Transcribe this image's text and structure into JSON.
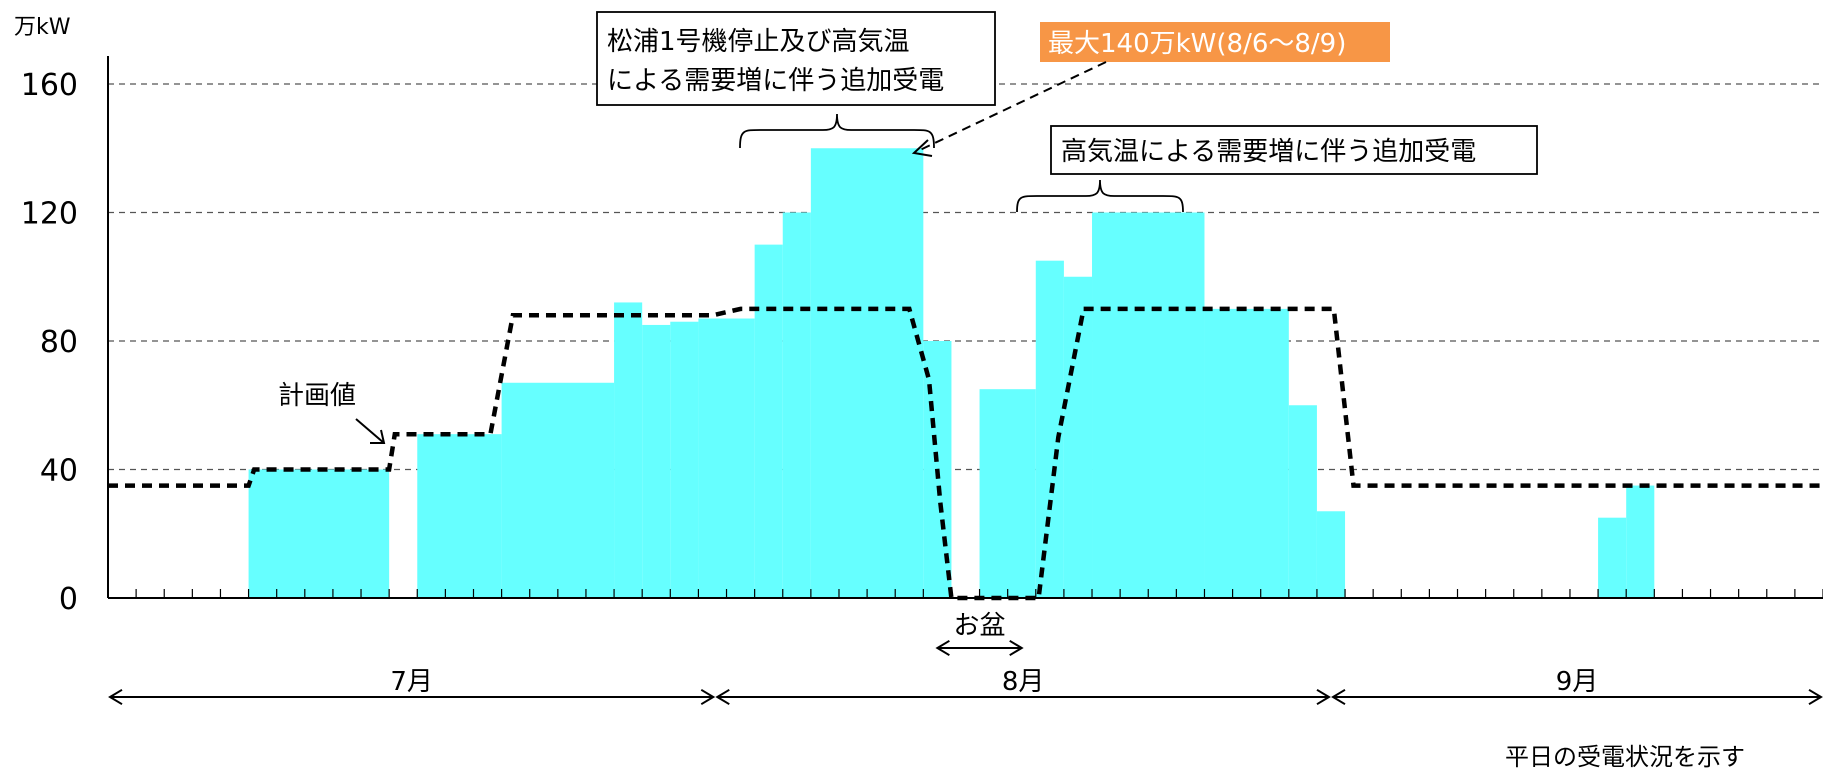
{
  "chart_data": {
    "type": "bar",
    "unit_label": "万kW",
    "ylim": [
      0,
      160
    ],
    "yticks": [
      "0",
      "40",
      "80",
      "120",
      "160"
    ],
    "grid": true,
    "day_count": 61,
    "bar_color": "#66ffff",
    "bars": [
      {
        "start": 5,
        "end": 10,
        "value": 40
      },
      {
        "start": 11,
        "end": 14,
        "value": 51
      },
      {
        "start": 14,
        "end": 18,
        "value": 67
      },
      {
        "start": 18,
        "end": 19,
        "value": 92
      },
      {
        "start": 19,
        "end": 20,
        "value": 85
      },
      {
        "start": 20,
        "end": 21,
        "value": 86
      },
      {
        "start": 21,
        "end": 23,
        "value": 87
      },
      {
        "start": 23,
        "end": 24,
        "value": 110
      },
      {
        "start": 24,
        "end": 25,
        "value": 120
      },
      {
        "start": 25,
        "end": 29,
        "value": 140
      },
      {
        "start": 29,
        "end": 30,
        "value": 80
      },
      {
        "start": 31,
        "end": 33,
        "value": 65
      },
      {
        "start": 33,
        "end": 34,
        "value": 105
      },
      {
        "start": 34,
        "end": 35,
        "value": 100
      },
      {
        "start": 35,
        "end": 39,
        "value": 120
      },
      {
        "start": 39,
        "end": 42,
        "value": 90
      },
      {
        "start": 42,
        "end": 43,
        "value": 60
      },
      {
        "start": 43,
        "end": 44,
        "value": 27
      },
      {
        "start": 53,
        "end": 54,
        "value": 25
      },
      {
        "start": 54,
        "end": 55,
        "value": 35
      }
    ],
    "plan_series": {
      "name": "計画値",
      "x": [
        0,
        5,
        5.2,
        10,
        10.2,
        13.6,
        14.4,
        21.5,
        22.5,
        28.5,
        29.2,
        29.6,
        30,
        30.7,
        33.1,
        33.8,
        34.7,
        43.6,
        44.3,
        61
      ],
      "y": [
        35,
        35,
        40,
        40,
        51,
        51,
        88,
        88,
        90,
        90,
        68,
        30,
        0,
        0,
        0,
        50,
        90,
        90,
        35,
        35
      ]
    },
    "months": [
      {
        "label": "7月",
        "start": 0,
        "end": 21.6
      },
      {
        "label": "8月",
        "start": 21.6,
        "end": 43.5
      },
      {
        "label": "9月",
        "start": 43.5,
        "end": 61
      }
    ],
    "obon": {
      "label": "お盆",
      "start": 29.5,
      "end": 32.5
    },
    "annotations": {
      "plan_label": "計画値",
      "box1_line1": "松浦1号機停止及び高気温",
      "box1_line2": "による需要増に伴う追加受電",
      "max_label": "最大140万kW(8/6～8/9)",
      "max_color": "#f79646",
      "box2": "高気温による需要増に伴う追加受電"
    },
    "footnote": "平日の受電状況を示す"
  }
}
